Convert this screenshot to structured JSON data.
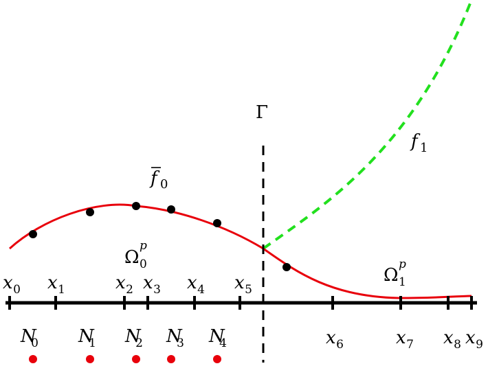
{
  "boundary_label": "Γ",
  "function_labels": {
    "f0_bar": {
      "base": "f",
      "sub": "0"
    },
    "f1": {
      "base": "f",
      "sub": "1"
    }
  },
  "domain_labels": {
    "omega0": {
      "base": "Ω",
      "sup": "p",
      "sub": "0"
    },
    "omega1": {
      "base": "Ω",
      "sup": "p",
      "sub": "1"
    }
  },
  "grid_points": [
    {
      "base": "x",
      "sub": "0"
    },
    {
      "base": "x",
      "sub": "1"
    },
    {
      "base": "x",
      "sub": "2"
    },
    {
      "base": "x",
      "sub": "3"
    },
    {
      "base": "x",
      "sub": "4"
    },
    {
      "base": "x",
      "sub": "5"
    },
    {
      "base": "x",
      "sub": "6"
    },
    {
      "base": "x",
      "sub": "7"
    },
    {
      "base": "x",
      "sub": "8"
    },
    {
      "base": "x",
      "sub": "9"
    }
  ],
  "nodes": [
    {
      "base": "N",
      "sub": "0"
    },
    {
      "base": "N",
      "sub": "1"
    },
    {
      "base": "N",
      "sub": "2"
    },
    {
      "base": "N",
      "sub": "3"
    },
    {
      "base": "N",
      "sub": "4"
    }
  ],
  "colors": {
    "solution_curve": "#e8000b",
    "extension_curve": "#22e01e",
    "axis": "#000000",
    "node_dot": "#e8000b",
    "sample_dot": "#000000"
  }
}
